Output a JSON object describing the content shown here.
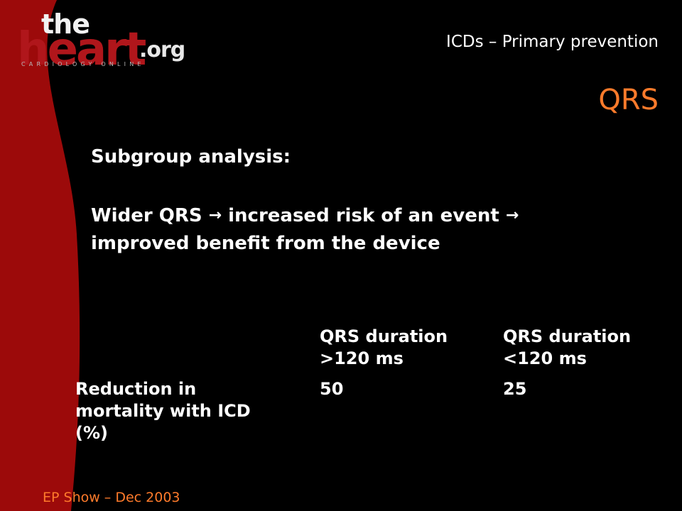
{
  "logo": {
    "the": "the",
    "heart": "heart",
    "org": ".org",
    "tagline": "CARDIOLOGY ONLINE"
  },
  "header": {
    "title": "ICDs – Primary prevention"
  },
  "slide": {
    "title": "QRS"
  },
  "content": {
    "heading": "Subgroup analysis:",
    "line1_part1": "Wider QRS",
    "arrow": "→",
    "line1_part2": "increased risk of an event",
    "line2": "improved benefit from the device"
  },
  "table": {
    "col1_header_line1": "QRS duration",
    "col1_header_line2": ">120 ms",
    "col2_header_line1": "QRS duration",
    "col2_header_line2": "<120 ms",
    "row_label_line1": "Reduction in",
    "row_label_line2": "mortality with ICD",
    "row_label_line3": "(%)",
    "value_col1": "50",
    "value_col2": "25"
  },
  "footer": {
    "text": "EP Show – Dec 2003"
  },
  "colors": {
    "background": "#000000",
    "accent_orange": "#ff7b2b",
    "swoosh_red": "#9c0a0a",
    "text": "#ffffff"
  }
}
